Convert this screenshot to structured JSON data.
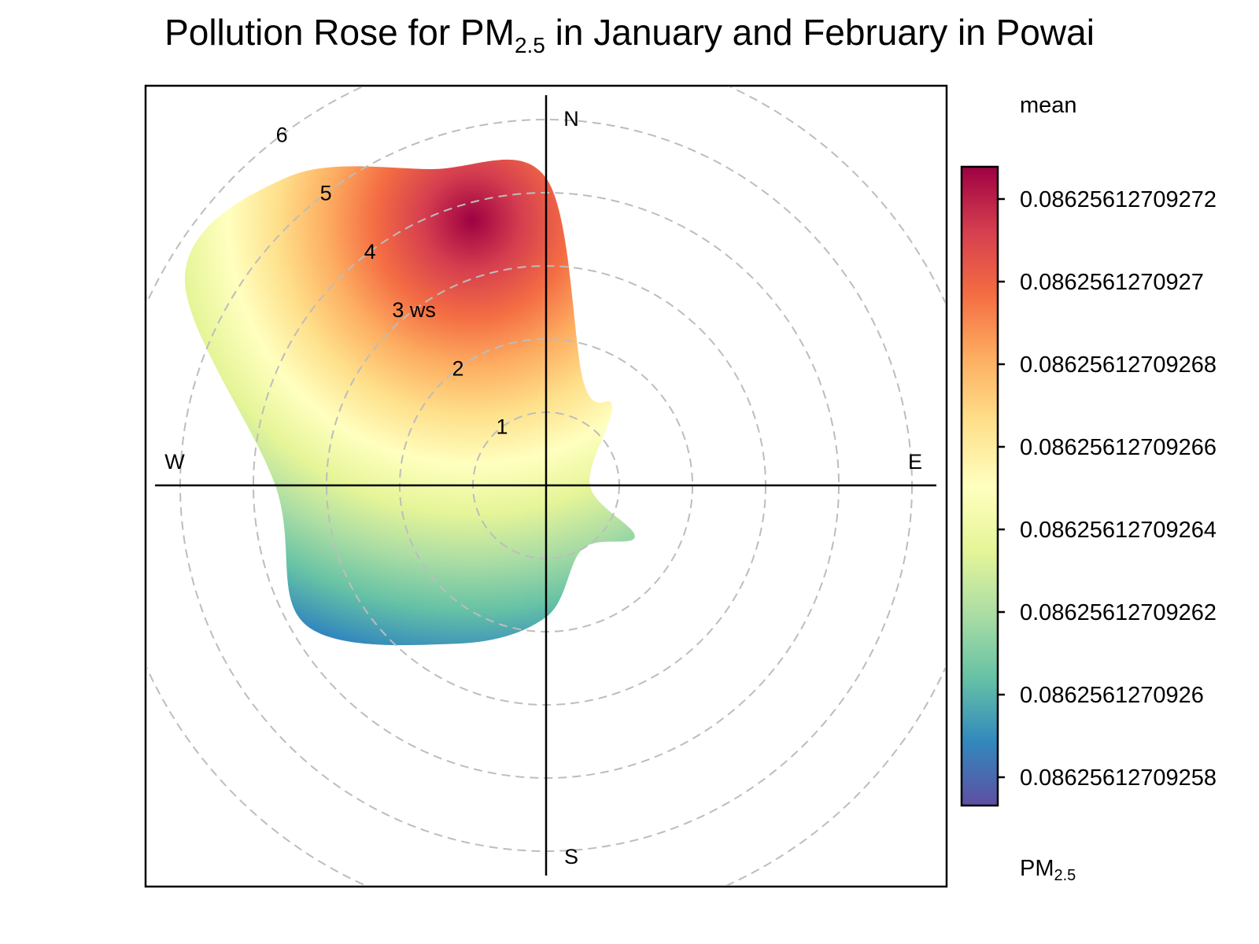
{
  "title": {
    "prefix": "Pollution Rose for PM",
    "subscript": "2.5",
    "suffix": " in January and February in Powai"
  },
  "chart_data": {
    "type": "heatmap",
    "subtype": "polar pollution rose",
    "radial_variable": "ws",
    "radial_ticks": [
      1,
      2,
      3,
      4,
      5,
      6
    ],
    "radial_tick_labels": [
      "1",
      "2",
      "3 ws",
      "4",
      "5",
      "6"
    ],
    "rmax": 6,
    "compass": {
      "north": "N",
      "south": "S",
      "east": "E",
      "west": "W"
    },
    "grid": "dashed circles",
    "statistic": "mean",
    "pollutant": "PM",
    "pollutant_subscript": "2.5",
    "colorbar": {
      "placement": "right",
      "tick_labels": [
        "0.08625612709272",
        "0.0862561270927",
        "0.08625612709268",
        "0.08625612709266",
        "0.08625612709264",
        "0.08625612709262",
        "0.0862561270926",
        "0.08625612709258"
      ],
      "colors": [
        "#9e0142",
        "#d53e4f",
        "#f46d43",
        "#fdae61",
        "#fee08b",
        "#ffffbf",
        "#e6f598",
        "#abdda4",
        "#66c2a5",
        "#3288bd",
        "#5e4fa2"
      ]
    },
    "sectors": [
      {
        "direction_deg": 0,
        "ws_max": 4.2,
        "value": 0.08625612709272
      },
      {
        "direction_deg": 20,
        "ws_max": 1.5,
        "value": 0.0862561270927
      },
      {
        "direction_deg": 40,
        "ws_max": 1.4,
        "value": 0.0862561270927
      },
      {
        "direction_deg": 90,
        "ws_max": 0.6,
        "value": 0.08625612709271
      },
      {
        "direction_deg": 120,
        "ws_max": 1.4,
        "value": 0.0862561270927
      },
      {
        "direction_deg": 150,
        "ws_max": 1.0,
        "value": 0.08625612709268
      },
      {
        "direction_deg": 180,
        "ws_max": 1.8,
        "value": 0.08625612709265
      },
      {
        "direction_deg": 210,
        "ws_max": 2.5,
        "value": 0.08625612709264
      },
      {
        "direction_deg": 240,
        "ws_max": 3.8,
        "value": 0.08625612709261
      },
      {
        "direction_deg": 270,
        "ws_max": 3.7,
        "value": 0.08625612709266
      },
      {
        "direction_deg": 300,
        "ws_max": 5.7,
        "value": 0.08625612709262
      },
      {
        "direction_deg": 320,
        "ws_max": 5.5,
        "value": 0.08625612709265
      },
      {
        "direction_deg": 340,
        "ws_max": 4.6,
        "value": 0.08625612709268
      }
    ]
  }
}
